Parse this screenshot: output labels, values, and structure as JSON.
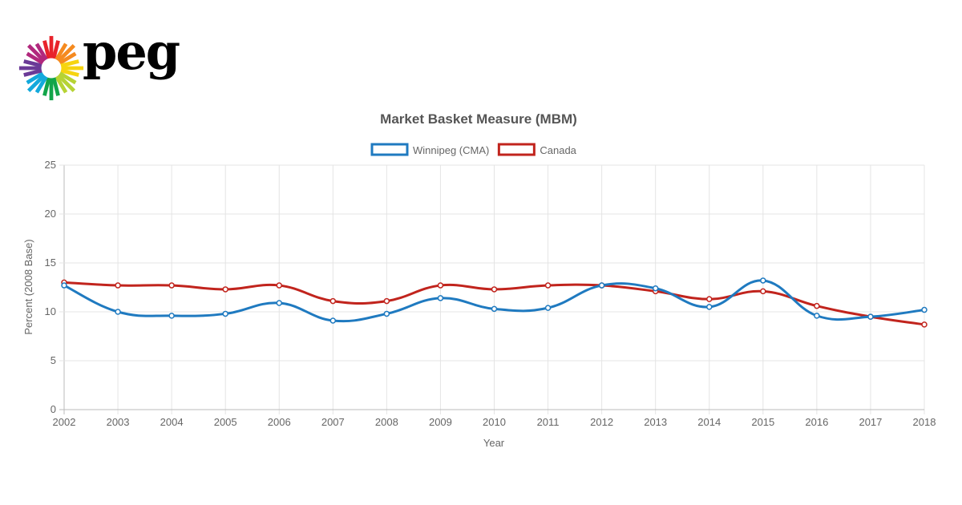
{
  "logo": {
    "text": "peg"
  },
  "colors": {
    "winnipeg": "#1f7ac0",
    "canada": "#c1241d",
    "grid": "#e4e4e4",
    "text": "#666666",
    "title": "#555555"
  },
  "chart_data": {
    "type": "line",
    "title": "Market Basket Measure (MBM)",
    "xlabel": "Year",
    "ylabel": "Percent (2008 Base)",
    "ylim": [
      0,
      25
    ],
    "yticks": [
      "0",
      "5",
      "10",
      "15",
      "20",
      "25"
    ],
    "grid": true,
    "legend_position": "top",
    "categories": [
      "2002",
      "2003",
      "2004",
      "2005",
      "2006",
      "2007",
      "2008",
      "2009",
      "2010",
      "2011",
      "2012",
      "2013",
      "2014",
      "2015",
      "2016",
      "2017",
      "2018"
    ],
    "series": [
      {
        "name": "Winnipeg (CMA)",
        "color": "#1f7ac0",
        "values": [
          12.7,
          10.0,
          9.6,
          9.8,
          10.9,
          9.1,
          9.8,
          11.4,
          10.3,
          10.4,
          12.7,
          12.4,
          10.5,
          13.2,
          9.6,
          9.5,
          10.2
        ]
      },
      {
        "name": "Canada",
        "color": "#c1241d",
        "values": [
          13.0,
          12.7,
          12.7,
          12.3,
          12.7,
          11.1,
          11.1,
          12.7,
          12.3,
          12.7,
          12.7,
          12.1,
          11.3,
          12.1,
          10.6,
          9.5,
          8.7
        ]
      }
    ]
  }
}
